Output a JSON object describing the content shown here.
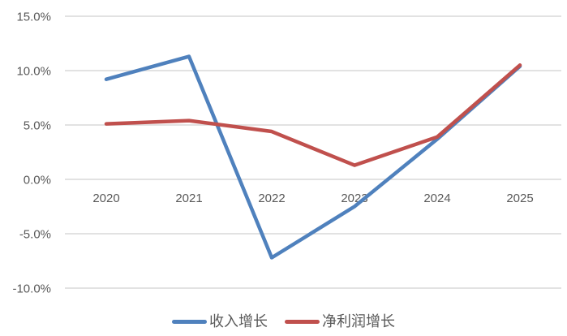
{
  "chart_data": {
    "type": "line",
    "title": "",
    "xlabel": "",
    "ylabel": "",
    "categories": [
      "2020",
      "2021",
      "2022",
      "2023",
      "2024",
      "2025"
    ],
    "series": [
      {
        "name": "收入增长",
        "color": "#4F81BD",
        "values": [
          9.2,
          11.3,
          -7.2,
          -2.5,
          3.7,
          10.4
        ]
      },
      {
        "name": "净利润增长",
        "color": "#C0504D",
        "values": [
          5.1,
          5.4,
          4.4,
          1.3,
          3.9,
          10.5
        ]
      }
    ],
    "y_ticks": [
      {
        "value": 15,
        "label": "15.0%"
      },
      {
        "value": 10,
        "label": "10.0%"
      },
      {
        "value": 5,
        "label": "5.0%"
      },
      {
        "value": 0,
        "label": "0.0%"
      },
      {
        "value": -5,
        "label": "-5.0%"
      },
      {
        "value": -10,
        "label": "-10.0%"
      }
    ],
    "ylim": [
      -10,
      15
    ],
    "grid": "horizontal-only",
    "legend_position": "bottom-center",
    "x_labels_position": "below-zero-line",
    "colors": {
      "background": "#FFFFFF",
      "gridline": "#D9D9D9",
      "tick_text": "#595959"
    }
  }
}
